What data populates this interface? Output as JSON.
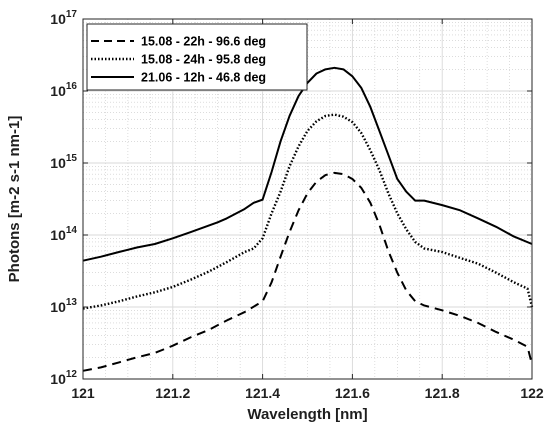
{
  "chart_data": {
    "type": "line",
    "title": "",
    "xlabel": "Wavelength [nm]",
    "ylabel": "Photons [m-2 s-1 nm-1]",
    "xlim": [
      121,
      122
    ],
    "ylim": [
      1000000000000.0,
      1e+17
    ],
    "yscale": "log",
    "grid": true,
    "minor_grid": true,
    "legend_position": "top-left",
    "x_ticks": [
      "121",
      "121.2",
      "121.4",
      "121.6",
      "121.8",
      "122"
    ],
    "y_ticks": [
      {
        "base": "10",
        "exp": "12"
      },
      {
        "base": "10",
        "exp": "13"
      },
      {
        "base": "10",
        "exp": "14"
      },
      {
        "base": "10",
        "exp": "15"
      },
      {
        "base": "10",
        "exp": "16"
      },
      {
        "base": "10",
        "exp": "17"
      }
    ],
    "series": [
      {
        "name": "15.08 - 22h - 96.6 deg",
        "style": "dashed",
        "color": "#000000",
        "x": [
          121.0,
          121.04,
          121.08,
          121.12,
          121.16,
          121.2,
          121.24,
          121.28,
          121.32,
          121.36,
          121.4,
          121.42,
          121.44,
          121.46,
          121.48,
          121.5,
          121.52,
          121.54,
          121.56,
          121.58,
          121.6,
          121.62,
          121.64,
          121.66,
          121.68,
          121.7,
          121.72,
          121.74,
          121.76,
          121.8,
          121.84,
          121.88,
          121.92,
          121.96,
          121.99,
          122.0
        ],
        "y": [
          1300000000000.0,
          1450000000000.0,
          1700000000000.0,
          2000000000000.0,
          2300000000000.0,
          2900000000000.0,
          3800000000000.0,
          4800000000000.0,
          6500000000000.0,
          8500000000000.0,
          12000000000000.0,
          22000000000000.0,
          50000000000000.0,
          110000000000000.0,
          220000000000000.0,
          380000000000000.0,
          550000000000000.0,
          680000000000000.0,
          730000000000000.0,
          700000000000000.0,
          600000000000000.0,
          450000000000000.0,
          280000000000000.0,
          140000000000000.0,
          60000000000000.0,
          30000000000000.0,
          17000000000000.0,
          12000000000000.0,
          10500000000000.0,
          9000000000000.0,
          7500000000000.0,
          6000000000000.0,
          4500000000000.0,
          3500000000000.0,
          2800000000000.0,
          1600000000000.0
        ]
      },
      {
        "name": "15.08 - 24h - 95.8 deg",
        "style": "dotted",
        "color": "#000000",
        "x": [
          121.0,
          121.04,
          121.08,
          121.12,
          121.16,
          121.2,
          121.24,
          121.28,
          121.32,
          121.36,
          121.38,
          121.4,
          121.42,
          121.44,
          121.46,
          121.48,
          121.5,
          121.52,
          121.54,
          121.56,
          121.58,
          121.6,
          121.62,
          121.64,
          121.66,
          121.68,
          121.7,
          121.72,
          121.74,
          121.76,
          121.8,
          121.84,
          121.88,
          121.92,
          121.96,
          121.99,
          122.0
        ],
        "y": [
          9500000000000.0,
          10500000000000.0,
          12000000000000.0,
          14000000000000.0,
          16000000000000.0,
          19000000000000.0,
          24000000000000.0,
          31000000000000.0,
          42000000000000.0,
          58000000000000.0,
          65000000000000.0,
          90000000000000.0,
          200000000000000.0,
          400000000000000.0,
          900000000000000.0,
          1700000000000000.0,
          2800000000000000.0,
          3800000000000000.0,
          4500000000000000.0,
          4700000000000000.0,
          4400000000000000.0,
          3700000000000000.0,
          2600000000000000.0,
          1500000000000000.0,
          800000000000000.0,
          380000000000000.0,
          200000000000000.0,
          120000000000000.0,
          80000000000000.0,
          65000000000000.0,
          58000000000000.0,
          48000000000000.0,
          40000000000000.0,
          30000000000000.0,
          22000000000000.0,
          18000000000000.0,
          10000000000000.0
        ]
      },
      {
        "name": "21.06 - 12h - 46.8 deg",
        "style": "solid",
        "color": "#000000",
        "x": [
          121.0,
          121.04,
          121.08,
          121.12,
          121.16,
          121.2,
          121.24,
          121.28,
          121.3,
          121.32,
          121.36,
          121.38,
          121.4,
          121.42,
          121.44,
          121.46,
          121.48,
          121.5,
          121.52,
          121.54,
          121.56,
          121.58,
          121.6,
          121.62,
          121.64,
          121.66,
          121.68,
          121.7,
          121.72,
          121.74,
          121.76,
          121.8,
          121.84,
          121.88,
          121.92,
          121.96,
          122.0
        ],
        "y": [
          44000000000000.0,
          50000000000000.0,
          58000000000000.0,
          67000000000000.0,
          75000000000000.0,
          90000000000000.0,
          110000000000000.0,
          135000000000000.0,
          150000000000000.0,
          170000000000000.0,
          230000000000000.0,
          280000000000000.0,
          310000000000000.0,
          750000000000000.0,
          2000000000000000.0,
          4500000000000000.0,
          8500000000000000.0,
          1.3e+16,
          1.75e+16,
          2e+16,
          2.1e+16,
          2e+16,
          1.6e+16,
          1.1e+16,
          6000000000000000.0,
          2800000000000000.0,
          1300000000000000.0,
          600000000000000.0,
          400000000000000.0,
          300000000000000.0,
          300000000000000.0,
          260000000000000.0,
          220000000000000.0,
          170000000000000.0,
          130000000000000.0,
          95000000000000.0,
          75000000000000.0
        ]
      }
    ]
  }
}
